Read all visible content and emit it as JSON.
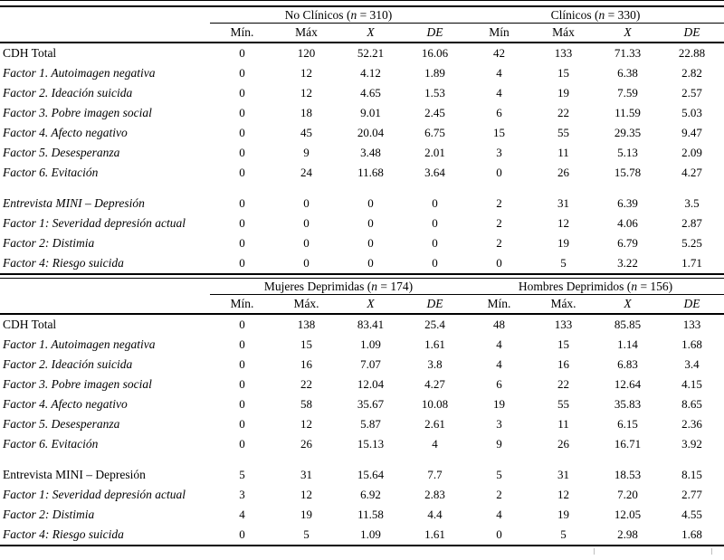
{
  "page": {
    "background": "#ffffff",
    "text_color": "#000000",
    "rule_color": "#000000",
    "grid_remnant_color": "#bfbfbf"
  },
  "tables": [
    {
      "groups": [
        {
          "text": "No Clínicos (n = 310)"
        },
        {
          "text": "Clínicos (n = 330)"
        }
      ],
      "columns": [
        {
          "label": "Mín.",
          "italic": false
        },
        {
          "label": "Máx",
          "italic": false
        },
        {
          "label": "X",
          "italic": true
        },
        {
          "label": "DE",
          "italic": true
        },
        {
          "label": "Mín",
          "italic": false
        },
        {
          "label": "Máx",
          "italic": false
        },
        {
          "label": "X",
          "italic": true
        },
        {
          "label": "DE",
          "italic": true
        }
      ],
      "rows": [
        {
          "label": "CDH Total",
          "italic": false,
          "values": [
            "0",
            "120",
            "52.21",
            "16.06",
            "42",
            "133",
            "71.33",
            "22.88"
          ]
        },
        {
          "label": "Factor 1. Autoimagen negativa",
          "italic": true,
          "values": [
            "0",
            "12",
            "4.12",
            "1.89",
            "4",
            "15",
            "6.38",
            "2.82"
          ]
        },
        {
          "label": "Factor 2. Ideación suicida",
          "italic": true,
          "values": [
            "0",
            "12",
            "4.65",
            "1.53",
            "4",
            "19",
            "7.59",
            "2.57"
          ]
        },
        {
          "label": "Factor 3. Pobre imagen social",
          "italic": true,
          "values": [
            "0",
            "18",
            "9.01",
            "2.45",
            "6",
            "22",
            "11.59",
            "5.03"
          ]
        },
        {
          "label": "Factor 4. Afecto negativo",
          "italic": true,
          "values": [
            "0",
            "45",
            "20.04",
            "6.75",
            "15",
            "55",
            "29.35",
            "9.47"
          ]
        },
        {
          "label": "Factor 5. Desesperanza",
          "italic": true,
          "values": [
            "0",
            "9",
            "3.48",
            "2.01",
            "3",
            "11",
            "5.13",
            "2.09"
          ]
        },
        {
          "label": "Factor 6. Evitación",
          "italic": true,
          "values": [
            "0",
            "24",
            "11.68",
            "3.64",
            "0",
            "26",
            "15.78",
            "4.27"
          ]
        },
        {
          "blank": true
        },
        {
          "label": "Entrevista MINI – Depresión",
          "italic": true,
          "values": [
            "0",
            "0",
            "0",
            "0",
            "2",
            "31",
            "6.39",
            "3.5"
          ]
        },
        {
          "label": "Factor 1: Severidad depresión actual",
          "italic": true,
          "values": [
            "0",
            "0",
            "0",
            "0",
            "2",
            "12",
            "4.06",
            "2.87"
          ]
        },
        {
          "label": "Factor 2: Distimia",
          "italic": true,
          "values": [
            "0",
            "0",
            "0",
            "0",
            "2",
            "19",
            "6.79",
            "5.25"
          ]
        },
        {
          "label": "Factor 4: Riesgo suicida",
          "italic": true,
          "values": [
            "0",
            "0",
            "0",
            "0",
            "0",
            "5",
            "3.22",
            "1.71"
          ]
        }
      ]
    },
    {
      "groups": [
        {
          "text": "Mujeres Deprimidas (n = 174)"
        },
        {
          "text": "Hombres Deprimidos (n = 156)"
        }
      ],
      "columns": [
        {
          "label": "Mín.",
          "italic": false
        },
        {
          "label": "Máx.",
          "italic": false
        },
        {
          "label": "X",
          "italic": true
        },
        {
          "label": "DE",
          "italic": true
        },
        {
          "label": "Mín.",
          "italic": false
        },
        {
          "label": "Máx.",
          "italic": false
        },
        {
          "label": "X",
          "italic": true
        },
        {
          "label": "DE",
          "italic": true
        }
      ],
      "rows": [
        {
          "label": "CDH Total",
          "italic": false,
          "values": [
            "0",
            "138",
            "83.41",
            "25.4",
            "48",
            "133",
            "85.85",
            "133"
          ]
        },
        {
          "label": "Factor 1. Autoimagen negativa",
          "italic": true,
          "values": [
            "0",
            "15",
            "1.09",
            "1.61",
            "4",
            "15",
            "1.14",
            "1.68"
          ]
        },
        {
          "label": "Factor 2. Ideación suicida",
          "italic": true,
          "values": [
            "0",
            "16",
            "7.07",
            "3.8",
            "4",
            "16",
            "6.83",
            "3.4"
          ]
        },
        {
          "label": "Factor 3. Pobre imagen social",
          "italic": true,
          "values": [
            "0",
            "22",
            "12.04",
            "4.27",
            "6",
            "22",
            "12.64",
            "4.15"
          ]
        },
        {
          "label": "Factor 4. Afecto negativo",
          "italic": true,
          "values": [
            "0",
            "58",
            "35.67",
            "10.08",
            "19",
            "55",
            "35.83",
            "8.65"
          ]
        },
        {
          "label": "Factor 5. Desesperanza",
          "italic": true,
          "values": [
            "0",
            "12",
            "5.87",
            "2.61",
            "3",
            "11",
            "6.15",
            "2.36"
          ]
        },
        {
          "label": "Factor 6. Evitación",
          "italic": true,
          "values": [
            "0",
            "26",
            "15.13",
            "4",
            "9",
            "26",
            "16.71",
            "3.92"
          ]
        },
        {
          "blank": true
        },
        {
          "label": "Entrevista MINI – Depresión",
          "italic": false,
          "values": [
            "5",
            "31",
            "15.64",
            "7.7",
            "5",
            "31",
            "18.53",
            "8.15"
          ]
        },
        {
          "label": "Factor 1: Severidad depresión actual",
          "italic": true,
          "values": [
            "3",
            "12",
            "6.92",
            "2.83",
            "2",
            "12",
            "7.20",
            "2.77"
          ]
        },
        {
          "label": "Factor 2: Distimia",
          "italic": true,
          "values": [
            "4",
            "19",
            "11.58",
            "4.4",
            "4",
            "19",
            "12.05",
            "4.55"
          ]
        },
        {
          "label": "Factor 4: Riesgo suicida",
          "italic": true,
          "values": [
            "0",
            "5",
            "1.09",
            "1.61",
            "0",
            "5",
            "2.98",
            "1.68"
          ]
        }
      ]
    }
  ]
}
